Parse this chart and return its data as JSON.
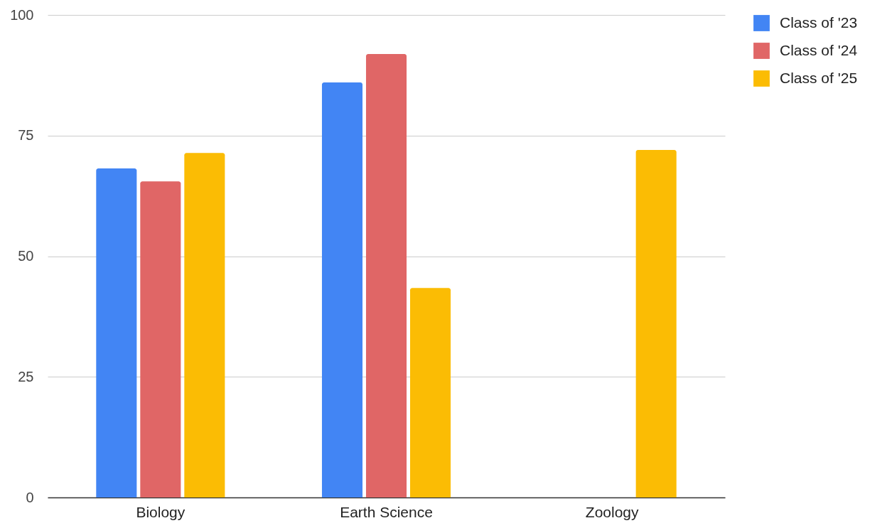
{
  "chart_data": {
    "type": "bar",
    "categories": [
      "Biology",
      "Earth Science",
      "Zoology"
    ],
    "series": [
      {
        "name": "Class of '23",
        "color": "#4285f4",
        "values": [
          68.2,
          86.0,
          null
        ]
      },
      {
        "name": "Class of '24",
        "color": "#e06666",
        "values": [
          65.5,
          91.9,
          null
        ]
      },
      {
        "name": "Class of '25",
        "color": "#fbbc04",
        "values": [
          71.4,
          43.4,
          72.0
        ]
      }
    ],
    "ylim": [
      0,
      100
    ],
    "yticks": [
      0,
      25,
      50,
      75,
      100
    ],
    "grid": "y",
    "legend": "top right"
  }
}
